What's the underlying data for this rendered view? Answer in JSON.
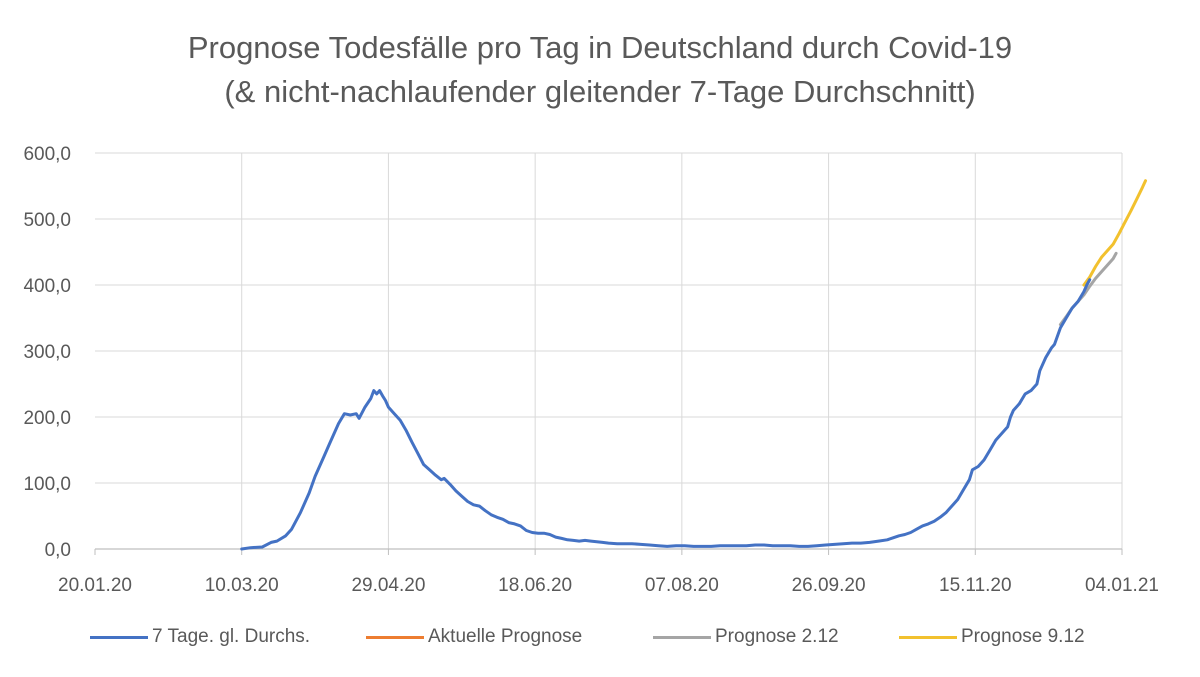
{
  "chart_data": {
    "type": "line",
    "title": [
      "Prognose Todesfälle pro Tag in Deutschland durch Covid-19",
      "(& nicht-nachlaufender gleitender 7-Tage Durchschnitt)"
    ],
    "xlabel": "",
    "ylabel": "",
    "x_ticks": [
      "20.01.20",
      "10.03.20",
      "29.04.20",
      "18.06.20",
      "07.08.20",
      "26.09.20",
      "15.11.20",
      "04.01.21"
    ],
    "x_range_days": [
      0,
      350
    ],
    "x_origin_date": "20.01.20",
    "y_ticks": [
      "0,0",
      "100,0",
      "200,0",
      "300,0",
      "400,0",
      "500,0",
      "600,0"
    ],
    "ylim": [
      0,
      600
    ],
    "grid": true,
    "legend_position": "bottom",
    "series": [
      {
        "name": "7 Tage. gl. Durchs.",
        "color": "#4472c4",
        "points": [
          [
            50,
            0
          ],
          [
            53,
            2
          ],
          [
            57,
            3
          ],
          [
            60,
            10
          ],
          [
            62,
            12
          ],
          [
            65,
            20
          ],
          [
            67,
            30
          ],
          [
            70,
            55
          ],
          [
            73,
            85
          ],
          [
            75,
            110
          ],
          [
            78,
            140
          ],
          [
            80,
            160
          ],
          [
            83,
            190
          ],
          [
            85,
            205
          ],
          [
            87,
            203
          ],
          [
            89,
            205
          ],
          [
            90,
            198
          ],
          [
            92,
            215
          ],
          [
            94,
            228
          ],
          [
            95,
            240
          ],
          [
            96,
            235
          ],
          [
            97,
            240
          ],
          [
            98,
            232
          ],
          [
            99,
            225
          ],
          [
            100,
            215
          ],
          [
            102,
            205
          ],
          [
            104,
            195
          ],
          [
            106,
            180
          ],
          [
            108,
            162
          ],
          [
            110,
            145
          ],
          [
            112,
            128
          ],
          [
            114,
            120
          ],
          [
            116,
            112
          ],
          [
            118,
            105
          ],
          [
            119,
            107
          ],
          [
            121,
            98
          ],
          [
            123,
            88
          ],
          [
            125,
            80
          ],
          [
            127,
            72
          ],
          [
            129,
            67
          ],
          [
            131,
            65
          ],
          [
            133,
            58
          ],
          [
            135,
            52
          ],
          [
            137,
            48
          ],
          [
            139,
            45
          ],
          [
            141,
            40
          ],
          [
            143,
            38
          ],
          [
            145,
            35
          ],
          [
            147,
            28
          ],
          [
            149,
            25
          ],
          [
            151,
            24
          ],
          [
            153,
            24
          ],
          [
            155,
            22
          ],
          [
            157,
            18
          ],
          [
            159,
            16
          ],
          [
            161,
            14
          ],
          [
            163,
            13
          ],
          [
            165,
            12
          ],
          [
            167,
            13
          ],
          [
            169,
            12
          ],
          [
            171,
            11
          ],
          [
            173,
            10
          ],
          [
            175,
            9
          ],
          [
            178,
            8
          ],
          [
            180,
            8
          ],
          [
            183,
            8
          ],
          [
            186,
            7
          ],
          [
            189,
            6
          ],
          [
            192,
            5
          ],
          [
            195,
            4
          ],
          [
            198,
            5
          ],
          [
            201,
            5
          ],
          [
            204,
            4
          ],
          [
            207,
            4
          ],
          [
            210,
            4
          ],
          [
            213,
            5
          ],
          [
            216,
            5
          ],
          [
            219,
            5
          ],
          [
            222,
            5
          ],
          [
            225,
            6
          ],
          [
            228,
            6
          ],
          [
            231,
            5
          ],
          [
            234,
            5
          ],
          [
            237,
            5
          ],
          [
            240,
            4
          ],
          [
            243,
            4
          ],
          [
            246,
            5
          ],
          [
            249,
            6
          ],
          [
            252,
            7
          ],
          [
            255,
            8
          ],
          [
            258,
            9
          ],
          [
            261,
            9
          ],
          [
            264,
            10
          ],
          [
            267,
            12
          ],
          [
            270,
            14
          ],
          [
            272,
            17
          ],
          [
            274,
            20
          ],
          [
            276,
            22
          ],
          [
            278,
            25
          ],
          [
            280,
            30
          ],
          [
            282,
            35
          ],
          [
            284,
            38
          ],
          [
            286,
            42
          ],
          [
            288,
            48
          ],
          [
            290,
            55
          ],
          [
            292,
            65
          ],
          [
            294,
            75
          ],
          [
            296,
            90
          ],
          [
            298,
            105
          ],
          [
            299,
            120
          ],
          [
            301,
            125
          ],
          [
            303,
            135
          ],
          [
            305,
            150
          ],
          [
            307,
            165
          ],
          [
            309,
            175
          ],
          [
            311,
            185
          ],
          [
            312,
            200
          ],
          [
            313,
            210
          ],
          [
            315,
            220
          ],
          [
            317,
            235
          ],
          [
            319,
            240
          ],
          [
            321,
            250
          ],
          [
            322,
            270
          ],
          [
            324,
            290
          ],
          [
            326,
            305
          ],
          [
            327,
            310
          ],
          [
            329,
            335
          ],
          [
            331,
            350
          ],
          [
            333,
            365
          ],
          [
            335,
            375
          ],
          [
            337,
            390
          ],
          [
            338,
            400
          ],
          [
            339,
            408
          ]
        ]
      },
      {
        "name": "Aktuelle Prognose",
        "color": "#ed7d31",
        "points": []
      },
      {
        "name": "Prognose 2.12",
        "color": "#a5a5a5",
        "points": [
          [
            329,
            340
          ],
          [
            331,
            352
          ],
          [
            333,
            365
          ],
          [
            335,
            375
          ],
          [
            337,
            385
          ],
          [
            339,
            398
          ],
          [
            341,
            410
          ],
          [
            343,
            420
          ],
          [
            345,
            430
          ],
          [
            347,
            440
          ],
          [
            348,
            448
          ]
        ]
      },
      {
        "name": "Prognose 9.12",
        "color": "#f2c12e",
        "points": [
          [
            337,
            400
          ],
          [
            339,
            412
          ],
          [
            341,
            428
          ],
          [
            343,
            442
          ],
          [
            345,
            452
          ],
          [
            347,
            462
          ],
          [
            349,
            478
          ],
          [
            351,
            495
          ],
          [
            353,
            512
          ],
          [
            355,
            530
          ],
          [
            357,
            548
          ],
          [
            358,
            558
          ]
        ]
      }
    ]
  }
}
